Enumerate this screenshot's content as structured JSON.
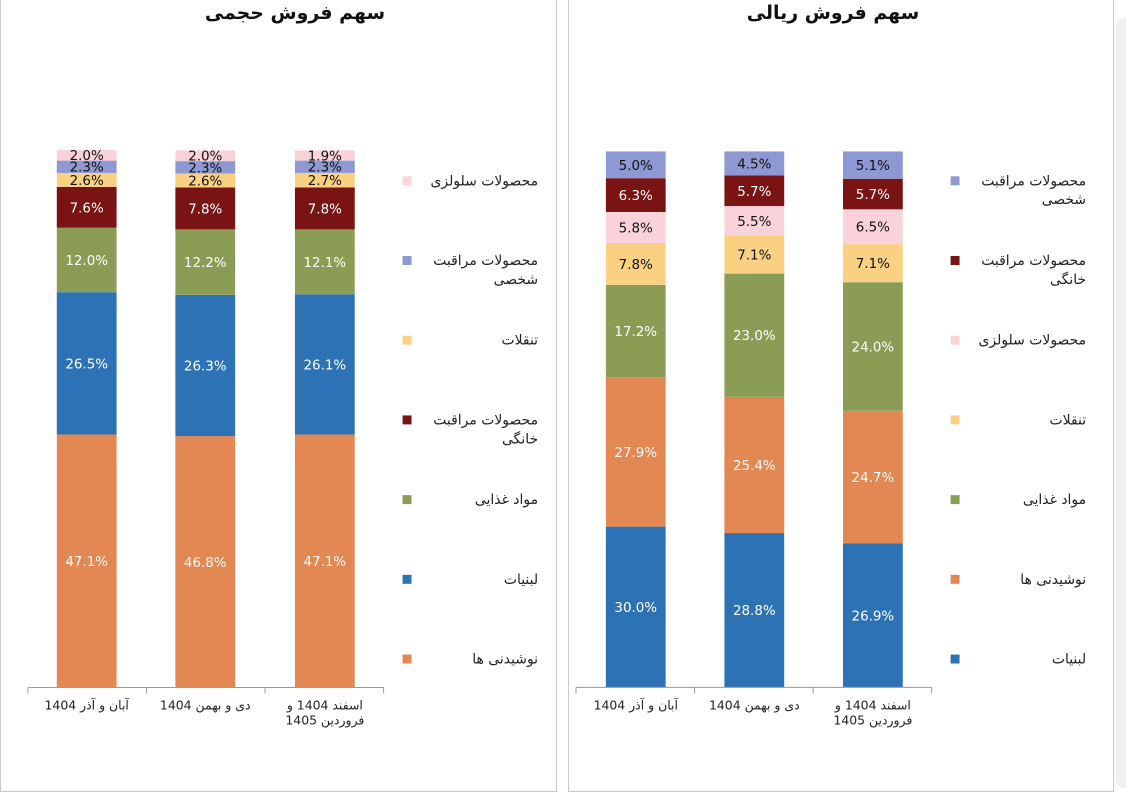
{
  "colors": {
    "beverages": "#E48853",
    "dairy": "#2E72B6",
    "food": "#8B9D55",
    "snacks": "#FAD183",
    "home_care": "#7A1414",
    "personal_care": "#8E98D2",
    "cellulose": "#F9D3D9"
  },
  "chart_data": [
    {
      "type": "bar",
      "stacked": true,
      "title": "سهم فروش حجمی",
      "categories": [
        [
          "آبان و آذر 1404"
        ],
        [
          "دی و بهمن 1404"
        ],
        [
          "اسفند 1404 و",
          "فروردین 1405"
        ]
      ],
      "ylim": [
        0,
        100
      ],
      "legend_position": "right",
      "legend": [
        {
          "key": "cellulose",
          "lines": [
            "محصولات سلولزی"
          ]
        },
        {
          "key": "personal_care",
          "lines": [
            "محصولات مراقبت",
            "شخصی"
          ]
        },
        {
          "key": "snacks",
          "lines": [
            "تنقلات"
          ]
        },
        {
          "key": "home_care",
          "lines": [
            "محصولات مراقبت",
            "خانگی"
          ]
        },
        {
          "key": "food",
          "lines": [
            "مواد غذایی"
          ]
        },
        {
          "key": "dairy",
          "lines": [
            "لبنیات"
          ]
        },
        {
          "key": "beverages",
          "lines": [
            "نوشیدنی ها"
          ]
        }
      ],
      "series": [
        {
          "key": "beverages",
          "values": [
            47.1,
            46.8,
            47.1
          ],
          "labels": [
            "47.1%",
            "46.8%",
            "47.1%"
          ]
        },
        {
          "key": "dairy",
          "values": [
            26.5,
            26.3,
            26.1
          ],
          "labels": [
            "26.5%",
            "26.3%",
            "26.1%"
          ]
        },
        {
          "key": "food",
          "values": [
            12.0,
            12.2,
            12.1
          ],
          "labels": [
            "12.0%",
            "12.2%",
            "12.1%"
          ]
        },
        {
          "key": "home_care",
          "values": [
            7.6,
            7.8,
            7.8
          ],
          "labels": [
            "7.6%",
            "7.8%",
            "7.8%"
          ]
        },
        {
          "key": "snacks",
          "values": [
            2.6,
            2.6,
            2.7
          ],
          "labels": [
            "2.6%",
            "2.6%",
            "2.7%"
          ]
        },
        {
          "key": "personal_care",
          "values": [
            2.3,
            2.3,
            2.3
          ],
          "labels": [
            "2.3%",
            "2.3%",
            "2.3%"
          ]
        },
        {
          "key": "cellulose",
          "values": [
            2.0,
            2.0,
            1.9
          ],
          "labels": [
            "2.0%",
            "2.0%",
            "1.9%"
          ]
        }
      ]
    },
    {
      "type": "bar",
      "stacked": true,
      "title": "سهم فروش ریالی",
      "categories": [
        [
          "آبان و آذر 1404"
        ],
        [
          "دی و بهمن 1404"
        ],
        [
          "اسفند 1404 و",
          "فروردین 1405"
        ]
      ],
      "ylim": [
        0,
        100
      ],
      "legend_position": "right",
      "legend": [
        {
          "key": "personal_care",
          "lines": [
            "محصولات مراقبت",
            "شخصی"
          ]
        },
        {
          "key": "home_care",
          "lines": [
            "محصولات مراقبت",
            "خانگی"
          ]
        },
        {
          "key": "cellulose",
          "lines": [
            "محصولات سلولزی"
          ]
        },
        {
          "key": "snacks",
          "lines": [
            "تنقلات"
          ]
        },
        {
          "key": "food",
          "lines": [
            "مواد غذایی"
          ]
        },
        {
          "key": "beverages",
          "lines": [
            "نوشیدنی ها"
          ]
        },
        {
          "key": "dairy",
          "lines": [
            "لبنیات"
          ]
        }
      ],
      "series": [
        {
          "key": "dairy",
          "values": [
            30.0,
            28.8,
            26.9
          ],
          "labels": [
            "30.0%",
            "28.8%",
            "26.9%"
          ]
        },
        {
          "key": "beverages",
          "values": [
            27.9,
            25.4,
            24.7
          ],
          "labels": [
            "27.9%",
            "25.4%",
            "24.7%"
          ]
        },
        {
          "key": "food",
          "values": [
            17.2,
            23.0,
            24.0
          ],
          "labels": [
            "17.2%",
            "23.0%",
            "24.0%"
          ]
        },
        {
          "key": "snacks",
          "values": [
            7.8,
            7.1,
            7.1
          ],
          "labels": [
            "7.8%",
            "7.1%",
            "7.1%"
          ]
        },
        {
          "key": "cellulose",
          "values": [
            5.8,
            5.5,
            6.5
          ],
          "labels": [
            "5.8%",
            "5.5%",
            "6.5%"
          ]
        },
        {
          "key": "home_care",
          "values": [
            6.3,
            5.7,
            5.7
          ],
          "labels": [
            "6.3%",
            "5.7%",
            "5.7%"
          ]
        },
        {
          "key": "personal_care",
          "values": [
            5.0,
            4.5,
            5.1
          ],
          "labels": [
            "5.0%",
            "4.5%",
            "5.1%"
          ]
        }
      ]
    }
  ]
}
